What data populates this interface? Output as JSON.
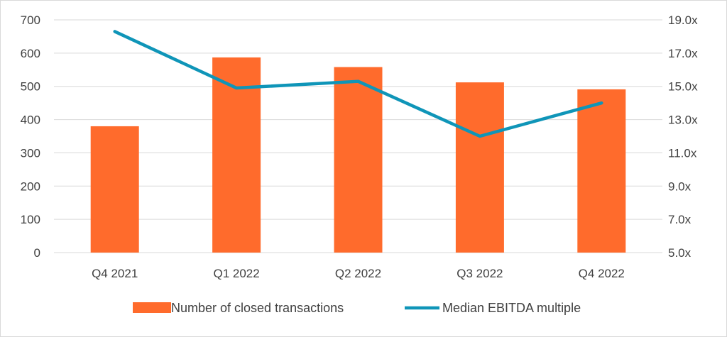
{
  "chart_data": {
    "type": "bar",
    "categories": [
      "Q4 2021",
      "Q1 2022",
      "Q2 2022",
      "Q3 2022",
      "Q4 2022"
    ],
    "series": [
      {
        "name": "Number of closed transactions",
        "type": "bar",
        "axis": "left",
        "color": "#ff6b2c",
        "values": [
          380,
          587,
          558,
          512,
          491
        ]
      },
      {
        "name": "Median EBITDA multiple",
        "type": "line",
        "axis": "right",
        "color": "#0f95b8",
        "values": [
          18.3,
          14.9,
          15.3,
          12.0,
          14.0
        ]
      }
    ],
    "left_axis": {
      "ylim": [
        0,
        700
      ],
      "ticks": [
        0,
        100,
        200,
        300,
        400,
        500,
        600,
        700
      ],
      "tick_labels": [
        "0",
        "100",
        "200",
        "300",
        "400",
        "500",
        "600",
        "700"
      ]
    },
    "right_axis": {
      "ylim": [
        5.0,
        19.0
      ],
      "ticks": [
        5,
        7,
        9,
        11,
        13,
        15,
        17,
        19
      ],
      "tick_labels": [
        "5.0x",
        "7.0x",
        "9.0x",
        "11.0x",
        "13.0x",
        "15.0x",
        "17.0x",
        "19.0x"
      ]
    },
    "title": "",
    "xlabel": "",
    "ylabel": "",
    "grid": true,
    "legend": {
      "position": "bottom",
      "entries": [
        "Number of closed transactions",
        "Median EBITDA multiple"
      ]
    },
    "colors": {
      "gridline": "#d9d9d9",
      "text": "#404040"
    }
  }
}
